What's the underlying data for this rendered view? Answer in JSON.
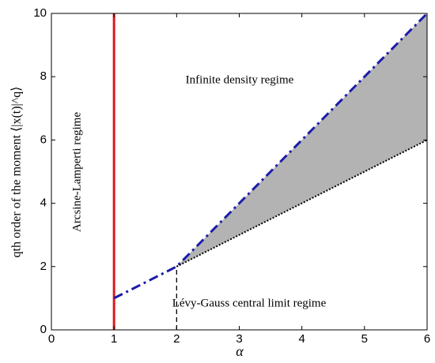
{
  "chart_data": {
    "type": "line",
    "x_label": "α",
    "y_label": "qth order of the moment ⟨|x(t)|^q⟩",
    "xlim": [
      0,
      6
    ],
    "ylim": [
      0,
      10
    ],
    "xticks": [
      0,
      1,
      2,
      3,
      4,
      5,
      6
    ],
    "yticks": [
      0,
      2,
      4,
      6,
      8,
      10
    ],
    "grid": false,
    "area": {
      "x": [
        2,
        6
      ],
      "lower": [
        2,
        6
      ],
      "upper": [
        2,
        10
      ],
      "color": "#b3b3b3"
    },
    "series": [
      {
        "color": "#e0161b",
        "dash": "solid",
        "width": 3,
        "x": [
          1,
          1
        ],
        "values": [
          0,
          10
        ]
      },
      {
        "color": "#1c1caa",
        "dash": "dashdot",
        "width": 3,
        "x": [
          1,
          2,
          6
        ],
        "values": [
          1,
          2,
          10
        ]
      },
      {
        "color": "#000000",
        "dash": "dotted",
        "width": 2,
        "x": [
          2,
          6
        ],
        "values": [
          2,
          6
        ]
      },
      {
        "color": "#000000",
        "dash": "dashed",
        "width": 1.3,
        "x": [
          2,
          2
        ],
        "values": [
          0,
          2
        ]
      }
    ],
    "annotations": [
      "Infinite density regime",
      "Arcsine-Lamperti regime",
      "Lévy-Gauss central limit regime"
    ]
  }
}
